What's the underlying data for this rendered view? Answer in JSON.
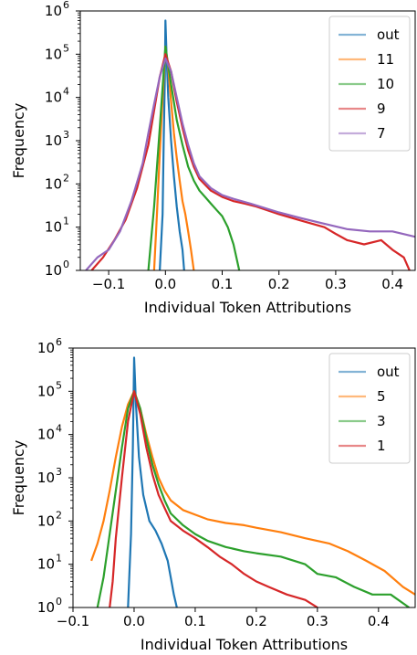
{
  "chart_data": [
    {
      "type": "line",
      "xlabel": "Individual Token Attributions",
      "ylabel": "Frequency",
      "yscale": "log",
      "xlim": [
        -0.15,
        0.44
      ],
      "ylim": [
        1,
        1000000
      ],
      "xticks": [
        -0.1,
        0.0,
        0.1,
        0.2,
        0.3,
        0.4
      ],
      "xtick_labels": [
        "−0.1",
        "0.0",
        "0.1",
        "0.2",
        "0.3",
        "0.4"
      ],
      "yticks": [
        1,
        10,
        100,
        1000,
        10000,
        100000,
        1000000
      ],
      "ytick_labels": [
        "10",
        "10",
        "10",
        "10",
        "10",
        "10",
        "10"
      ],
      "ytick_exps": [
        "0",
        "1",
        "2",
        "3",
        "4",
        "5",
        "6"
      ],
      "legend_position": "top-right",
      "series": [
        {
          "name": "out",
          "color": "#1f77b4",
          "points": [
            [
              -0.01,
              1
            ],
            [
              -0.005,
              20
            ],
            [
              -0.003,
              1000
            ],
            [
              -0.001,
              30000
            ],
            [
              0.0,
              600000
            ],
            [
              0.002,
              100000
            ],
            [
              0.005,
              10000
            ],
            [
              0.01,
              1000
            ],
            [
              0.015,
              150
            ],
            [
              0.02,
              30
            ],
            [
              0.025,
              8
            ],
            [
              0.03,
              3
            ],
            [
              0.033,
              1
            ]
          ]
        },
        {
          "name": "11",
          "color": "#ff7f0e",
          "points": [
            [
              -0.02,
              1
            ],
            [
              -0.015,
              20
            ],
            [
              -0.01,
              500
            ],
            [
              -0.005,
              10000
            ],
            [
              0.0,
              150000
            ],
            [
              0.005,
              50000
            ],
            [
              0.01,
              8000
            ],
            [
              0.015,
              1500
            ],
            [
              0.02,
              400
            ],
            [
              0.025,
              120
            ],
            [
              0.03,
              40
            ],
            [
              0.035,
              20
            ],
            [
              0.04,
              8
            ],
            [
              0.045,
              3
            ],
            [
              0.05,
              1
            ]
          ]
        },
        {
          "name": "10",
          "color": "#2ca02c",
          "points": [
            [
              -0.03,
              1
            ],
            [
              -0.02,
              30
            ],
            [
              -0.01,
              2000
            ],
            [
              0.0,
              150000
            ],
            [
              0.01,
              20000
            ],
            [
              0.02,
              3000
            ],
            [
              0.03,
              800
            ],
            [
              0.04,
              250
            ],
            [
              0.05,
              120
            ],
            [
              0.06,
              70
            ],
            [
              0.07,
              50
            ],
            [
              0.08,
              35
            ],
            [
              0.09,
              25
            ],
            [
              0.1,
              18
            ],
            [
              0.11,
              10
            ],
            [
              0.12,
              4
            ],
            [
              0.13,
              1
            ]
          ]
        },
        {
          "name": "9",
          "color": "#d62728",
          "points": [
            [
              -0.13,
              1
            ],
            [
              -0.11,
              2
            ],
            [
              -0.09,
              5
            ],
            [
              -0.07,
              15
            ],
            [
              -0.05,
              80
            ],
            [
              -0.03,
              800
            ],
            [
              -0.02,
              5000
            ],
            [
              -0.01,
              30000
            ],
            [
              0.0,
              100000
            ],
            [
              0.01,
              40000
            ],
            [
              0.02,
              8000
            ],
            [
              0.03,
              2000
            ],
            [
              0.04,
              600
            ],
            [
              0.05,
              250
            ],
            [
              0.06,
              130
            ],
            [
              0.08,
              70
            ],
            [
              0.1,
              50
            ],
            [
              0.12,
              40
            ],
            [
              0.14,
              35
            ],
            [
              0.16,
              30
            ],
            [
              0.2,
              20
            ],
            [
              0.24,
              14
            ],
            [
              0.28,
              10
            ],
            [
              0.3,
              7
            ],
            [
              0.32,
              5
            ],
            [
              0.35,
              4
            ],
            [
              0.38,
              5
            ],
            [
              0.4,
              3
            ],
            [
              0.42,
              2
            ],
            [
              0.43,
              1
            ]
          ]
        },
        {
          "name": "7",
          "color": "#9467bd",
          "points": [
            [
              -0.14,
              1
            ],
            [
              -0.12,
              2
            ],
            [
              -0.1,
              3
            ],
            [
              -0.08,
              8
            ],
            [
              -0.06,
              40
            ],
            [
              -0.04,
              300
            ],
            [
              -0.03,
              1500
            ],
            [
              -0.02,
              7000
            ],
            [
              -0.01,
              30000
            ],
            [
              0.0,
              80000
            ],
            [
              0.01,
              40000
            ],
            [
              0.02,
              10000
            ],
            [
              0.03,
              2500
            ],
            [
              0.04,
              800
            ],
            [
              0.05,
              300
            ],
            [
              0.06,
              150
            ],
            [
              0.08,
              80
            ],
            [
              0.1,
              55
            ],
            [
              0.12,
              45
            ],
            [
              0.15,
              35
            ],
            [
              0.2,
              22
            ],
            [
              0.24,
              16
            ],
            [
              0.28,
              12
            ],
            [
              0.32,
              9
            ],
            [
              0.36,
              8
            ],
            [
              0.4,
              8
            ],
            [
              0.44,
              6
            ]
          ]
        }
      ]
    },
    {
      "type": "line",
      "xlabel": "Individual Token Attributions",
      "ylabel": "Frequency",
      "yscale": "log",
      "xlim": [
        -0.1,
        0.46
      ],
      "ylim": [
        1,
        1000000
      ],
      "xticks": [
        -0.1,
        0.0,
        0.1,
        0.2,
        0.3,
        0.4
      ],
      "xtick_labels": [
        "−0.1",
        "0.0",
        "0.1",
        "0.2",
        "0.3",
        "0.4"
      ],
      "yticks": [
        1,
        10,
        100,
        1000,
        10000,
        100000,
        1000000
      ],
      "ytick_labels": [
        "10",
        "10",
        "10",
        "10",
        "10",
        "10",
        "10"
      ],
      "ytick_exps": [
        "0",
        "1",
        "2",
        "3",
        "4",
        "5",
        "6"
      ],
      "legend_position": "top-right",
      "series": [
        {
          "name": "out",
          "color": "#1f77b4",
          "points": [
            [
              -0.01,
              1
            ],
            [
              -0.005,
              50
            ],
            [
              -0.002,
              5000
            ],
            [
              0.0,
              600000
            ],
            [
              0.003,
              50000
            ],
            [
              0.008,
              3000
            ],
            [
              0.015,
              400
            ],
            [
              0.025,
              100
            ],
            [
              0.035,
              60
            ],
            [
              0.045,
              30
            ],
            [
              0.055,
              12
            ],
            [
              0.06,
              5
            ],
            [
              0.065,
              2
            ],
            [
              0.07,
              1
            ]
          ]
        },
        {
          "name": "5",
          "color": "#ff7f0e",
          "points": [
            [
              -0.07,
              12
            ],
            [
              -0.06,
              30
            ],
            [
              -0.05,
              100
            ],
            [
              -0.04,
              500
            ],
            [
              -0.03,
              3000
            ],
            [
              -0.02,
              15000
            ],
            [
              -0.01,
              50000
            ],
            [
              0.0,
              100000
            ],
            [
              0.01,
              40000
            ],
            [
              0.02,
              10000
            ],
            [
              0.03,
              3000
            ],
            [
              0.04,
              1000
            ],
            [
              0.05,
              500
            ],
            [
              0.06,
              300
            ],
            [
              0.08,
              180
            ],
            [
              0.1,
              140
            ],
            [
              0.12,
              110
            ],
            [
              0.15,
              90
            ],
            [
              0.18,
              80
            ],
            [
              0.2,
              70
            ],
            [
              0.24,
              55
            ],
            [
              0.28,
              40
            ],
            [
              0.32,
              30
            ],
            [
              0.35,
              20
            ],
            [
              0.38,
              12
            ],
            [
              0.41,
              7
            ],
            [
              0.44,
              3
            ],
            [
              0.46,
              2
            ]
          ]
        },
        {
          "name": "3",
          "color": "#2ca02c",
          "points": [
            [
              -0.06,
              1
            ],
            [
              -0.05,
              5
            ],
            [
              -0.04,
              50
            ],
            [
              -0.03,
              500
            ],
            [
              -0.02,
              5000
            ],
            [
              -0.01,
              40000
            ],
            [
              0.0,
              100000
            ],
            [
              0.01,
              40000
            ],
            [
              0.02,
              8000
            ],
            [
              0.03,
              2000
            ],
            [
              0.04,
              700
            ],
            [
              0.05,
              300
            ],
            [
              0.06,
              150
            ],
            [
              0.08,
              80
            ],
            [
              0.1,
              50
            ],
            [
              0.12,
              35
            ],
            [
              0.15,
              25
            ],
            [
              0.18,
              20
            ],
            [
              0.2,
              18
            ],
            [
              0.24,
              15
            ],
            [
              0.28,
              10
            ],
            [
              0.3,
              6
            ],
            [
              0.33,
              5
            ],
            [
              0.36,
              3
            ],
            [
              0.39,
              2
            ],
            [
              0.42,
              2
            ],
            [
              0.45,
              1
            ]
          ]
        },
        {
          "name": "1",
          "color": "#d62728",
          "points": [
            [
              -0.04,
              1
            ],
            [
              -0.035,
              4
            ],
            [
              -0.03,
              40
            ],
            [
              -0.02,
              1000
            ],
            [
              -0.01,
              20000
            ],
            [
              0.0,
              100000
            ],
            [
              0.01,
              30000
            ],
            [
              0.02,
              5000
            ],
            [
              0.03,
              1200
            ],
            [
              0.04,
              400
            ],
            [
              0.05,
              200
            ],
            [
              0.06,
              100
            ],
            [
              0.08,
              60
            ],
            [
              0.1,
              40
            ],
            [
              0.12,
              25
            ],
            [
              0.14,
              15
            ],
            [
              0.16,
              10
            ],
            [
              0.18,
              6
            ],
            [
              0.2,
              4
            ],
            [
              0.22,
              3
            ],
            [
              0.25,
              2
            ],
            [
              0.28,
              1.5
            ],
            [
              0.3,
              1
            ]
          ]
        }
      ]
    }
  ]
}
